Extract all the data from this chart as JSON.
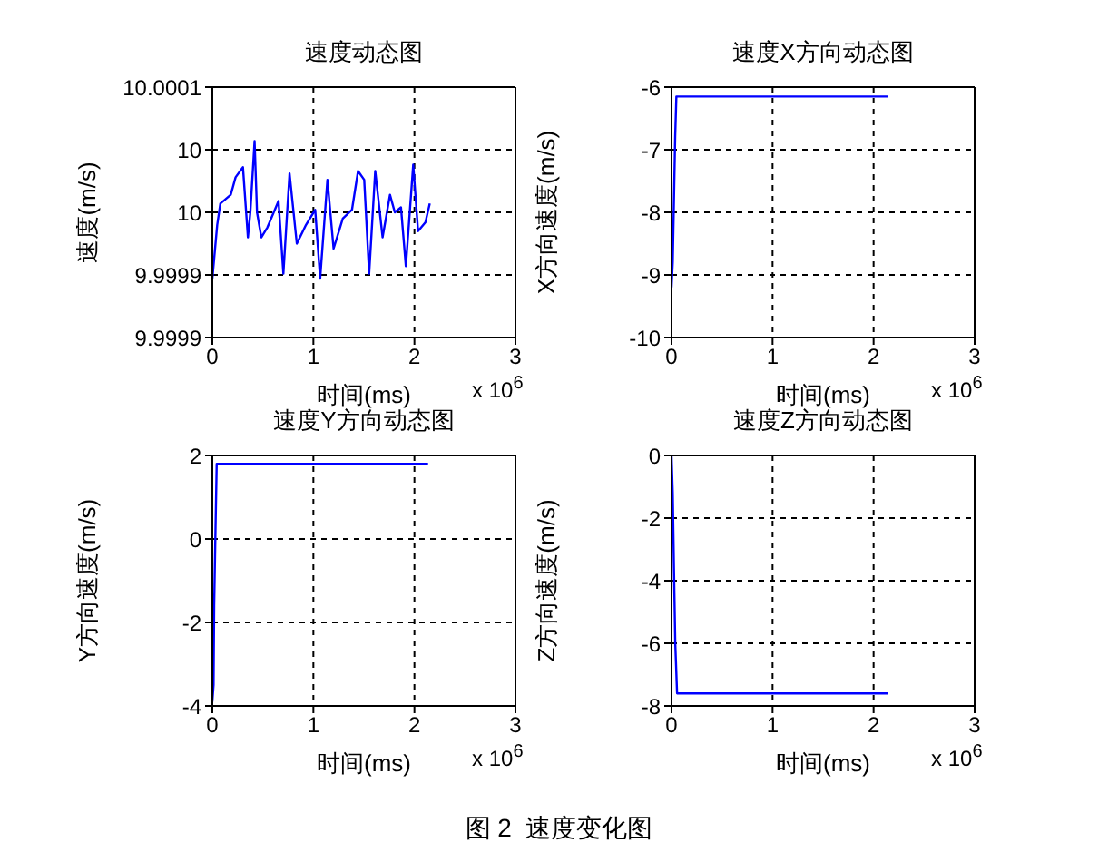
{
  "chart_data": [
    {
      "type": "line",
      "title": "速度动态图",
      "xlabel": "时间(ms)",
      "ylabel": "速度(m/s)",
      "annotations": [
        "x 10$^{6}$"
      ],
      "grid": true,
      "x": [
        0,
        0.048,
        0.079,
        0.182,
        0.23,
        0.303,
        0.352,
        0.376,
        0.418,
        0.442,
        0.485,
        0.545,
        0.655,
        0.703,
        0.764,
        0.836,
        0.927,
        1.018,
        1.067,
        1.139,
        1.2,
        1.291,
        1.382,
        1.442,
        1.503,
        1.552,
        1.612,
        1.685,
        1.758,
        1.806,
        1.867,
        1.915,
        1.988,
        2.036,
        2.109,
        2.152
      ],
      "series": [
        {
          "color": "#0000ff",
          "values": [
            9.999947,
            9.99999,
            10.000007,
            10.000014,
            10.000028,
            10.000036,
            9.99998,
            10,
            10.000057,
            10,
            9.99998,
            9.999988,
            10.000009,
            9.999951,
            10.000031,
            9.999975,
            9.99999,
            10.000002,
            9.999947,
            10.000026,
            9.999971,
            9.999995,
            10.000002,
            10.000033,
            10.000026,
            9.999951,
            10.000033,
            9.99998,
            10.000014,
            10,
            10.000004,
            9.999957,
            10.000038,
            9.999985,
            9.999992,
            10.000007
          ]
        }
      ],
      "xlim": [
        0,
        3
      ],
      "xticks": [
        0,
        1,
        2,
        3
      ],
      "ylim": [
        9.9999,
        10.0001
      ],
      "yticks": [
        {
          "value": 9.9999,
          "label": "9.9999"
        },
        {
          "value": 9.99995,
          "label": "9.9999"
        },
        {
          "value": 10,
          "label": "10"
        },
        {
          "value": 10.00005,
          "label": "10"
        },
        {
          "value": 10.0001,
          "label": "10.0001"
        }
      ]
    },
    {
      "type": "line",
      "title": "速度X方向动态图",
      "xlabel": "时间(ms)",
      "ylabel": "X方向速度(m/s)",
      "annotations": [
        "x 10$^{6}$"
      ],
      "grid": true,
      "x": [
        0,
        0.012,
        0.024,
        0.036,
        0.048,
        2.14
      ],
      "series": [
        {
          "color": "#0000ff",
          "values": [
            -9.2,
            -8.8,
            -7.8,
            -6.8,
            -6.15,
            -6.15
          ]
        }
      ],
      "xlim": [
        0,
        3
      ],
      "xticks": [
        0,
        1,
        2,
        3
      ],
      "ylim": [
        -10,
        -6
      ],
      "yticks": [
        -10,
        -9,
        -8,
        -7,
        -6
      ]
    },
    {
      "type": "line",
      "title": "速度Y方向动态图",
      "xlabel": "时间(ms)",
      "ylabel": "Y方向速度(m/s)",
      "annotations": [
        "x 10$^{6}$"
      ],
      "grid": true,
      "x": [
        0,
        0.012,
        0.018,
        0.031,
        0.043,
        2.135
      ],
      "series": [
        {
          "color": "#0000ff",
          "values": [
            -3.9,
            -3.5,
            -1.6,
            0.2,
            1.8,
            1.8
          ]
        }
      ],
      "xlim": [
        0,
        3
      ],
      "xticks": [
        0,
        1,
        2,
        3
      ],
      "ylim": [
        -4,
        2
      ],
      "yticks": [
        -4,
        -2,
        0,
        2
      ]
    },
    {
      "type": "line",
      "title": "速度Z方向动态图",
      "xlabel": "时间(ms)",
      "ylabel": "Z方向速度(m/s)",
      "annotations": [
        "x 10$^{6}$",
        "图 2  速度变化图"
      ],
      "grid": true,
      "x": [
        0,
        0.012,
        0.024,
        0.037,
        0.055,
        2.146
      ],
      "series": [
        {
          "color": "#0000ff",
          "values": [
            0,
            -1.2,
            -3.6,
            -6,
            -7.6,
            -7.6
          ]
        }
      ],
      "xlim": [
        0,
        3
      ],
      "xticks": [
        0,
        1,
        2,
        3
      ],
      "ylim": [
        -8,
        0
      ],
      "yticks": [
        -8,
        -6,
        -4,
        -2,
        0
      ]
    }
  ]
}
